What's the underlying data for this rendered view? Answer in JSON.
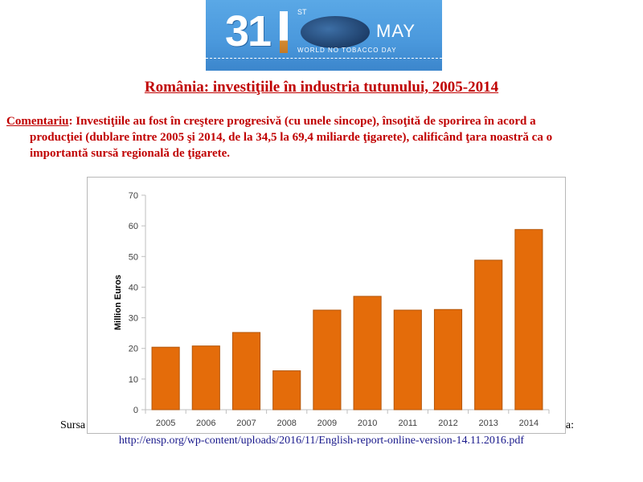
{
  "banner": {
    "number": "31",
    "suffix": "ST",
    "month": "MAY",
    "subtitle": "WORLD NO TOBACCO DAY"
  },
  "title": "România: investiţiile în industria tutunului, 2005-2014",
  "comment": {
    "label": "Comentariu",
    "line1": ": Investiţiile au fost în creştere progresivă (cu unele sincope), însoţită de sporirea în acord a",
    "line2": "producţiei (dublare între 2005 şi 2014, de la 34,5 la 69,4 miliarde ţigarete), calificând ţara noastră ca o",
    "line3": "importantă sursă regională de ţigarete."
  },
  "source": {
    "prefix": "Sursa",
    "suffix": "ia:",
    "url": "http://ensp.org/wp-content/uploads/2016/11/English-report-online-version-14.11.2016.pdf"
  },
  "colors": {
    "bar": "#e46c0a",
    "bar_edge": "#b3560a",
    "title": "#c00000",
    "url": "#1a1a8c"
  },
  "chart_data": {
    "type": "bar",
    "categories": [
      "2005",
      "2006",
      "2007",
      "2008",
      "2009",
      "2010",
      "2011",
      "2012",
      "2013",
      "2014"
    ],
    "values": [
      20.4,
      20.8,
      25.2,
      12.7,
      32.5,
      37.0,
      32.5,
      32.7,
      48.8,
      58.8
    ],
    "ylabel": "Million Euros",
    "xlabel": "",
    "ylim": [
      0,
      70
    ],
    "yticks": [
      0,
      10,
      20,
      30,
      40,
      50,
      60,
      70
    ],
    "grid": false,
    "legend": "none"
  }
}
